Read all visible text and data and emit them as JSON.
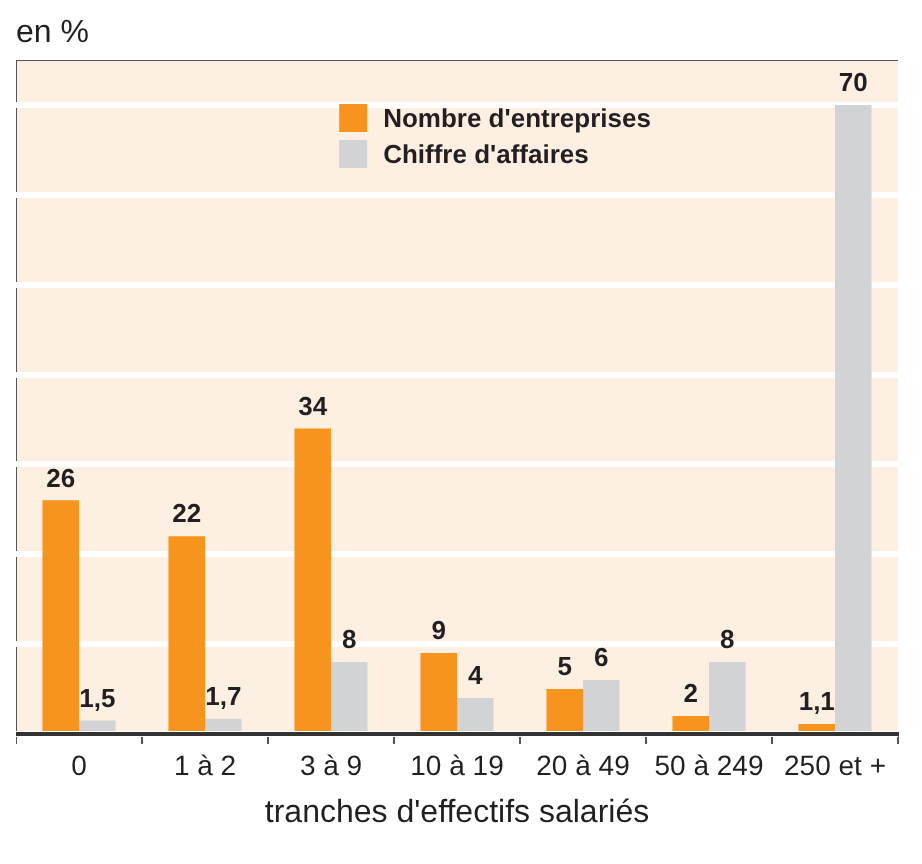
{
  "chart_data": {
    "type": "bar",
    "ylabel": "en %",
    "xlabel": "tranches d'effectifs salariés",
    "categories": [
      "0",
      "1 à 2",
      "3 à 9",
      "10 à 19",
      "20 à 49",
      "50 à 249",
      "250 et +"
    ],
    "series": [
      {
        "name": "Nombre d'entreprises",
        "color": "#f7941d",
        "values": [
          26,
          22,
          34,
          9,
          5,
          2,
          1.1
        ],
        "value_labels": [
          "26",
          "22",
          "34",
          "9",
          "5",
          "2",
          "1,1"
        ]
      },
      {
        "name": "Chiffre d'affaires",
        "color": "#d1d3d4",
        "values": [
          1.5,
          1.7,
          8,
          4,
          6,
          8,
          70
        ],
        "value_labels": [
          "1,5",
          "1,7",
          "8",
          "4",
          "6",
          "8",
          "70"
        ]
      }
    ],
    "ylim": [
      0,
      75
    ],
    "yticks": [
      {
        "value": 0,
        "label": null
      },
      {
        "value": 10,
        "label": null
      },
      {
        "value": 20,
        "label": null
      },
      {
        "value": 30,
        "label": null
      },
      {
        "value": 40,
        "label": null
      },
      {
        "value": 50,
        "label": null
      },
      {
        "value": 60,
        "label": null
      },
      {
        "value": 70,
        "label": null
      }
    ],
    "grid": "y",
    "legend": "top",
    "tick_labels": "x"
  }
}
